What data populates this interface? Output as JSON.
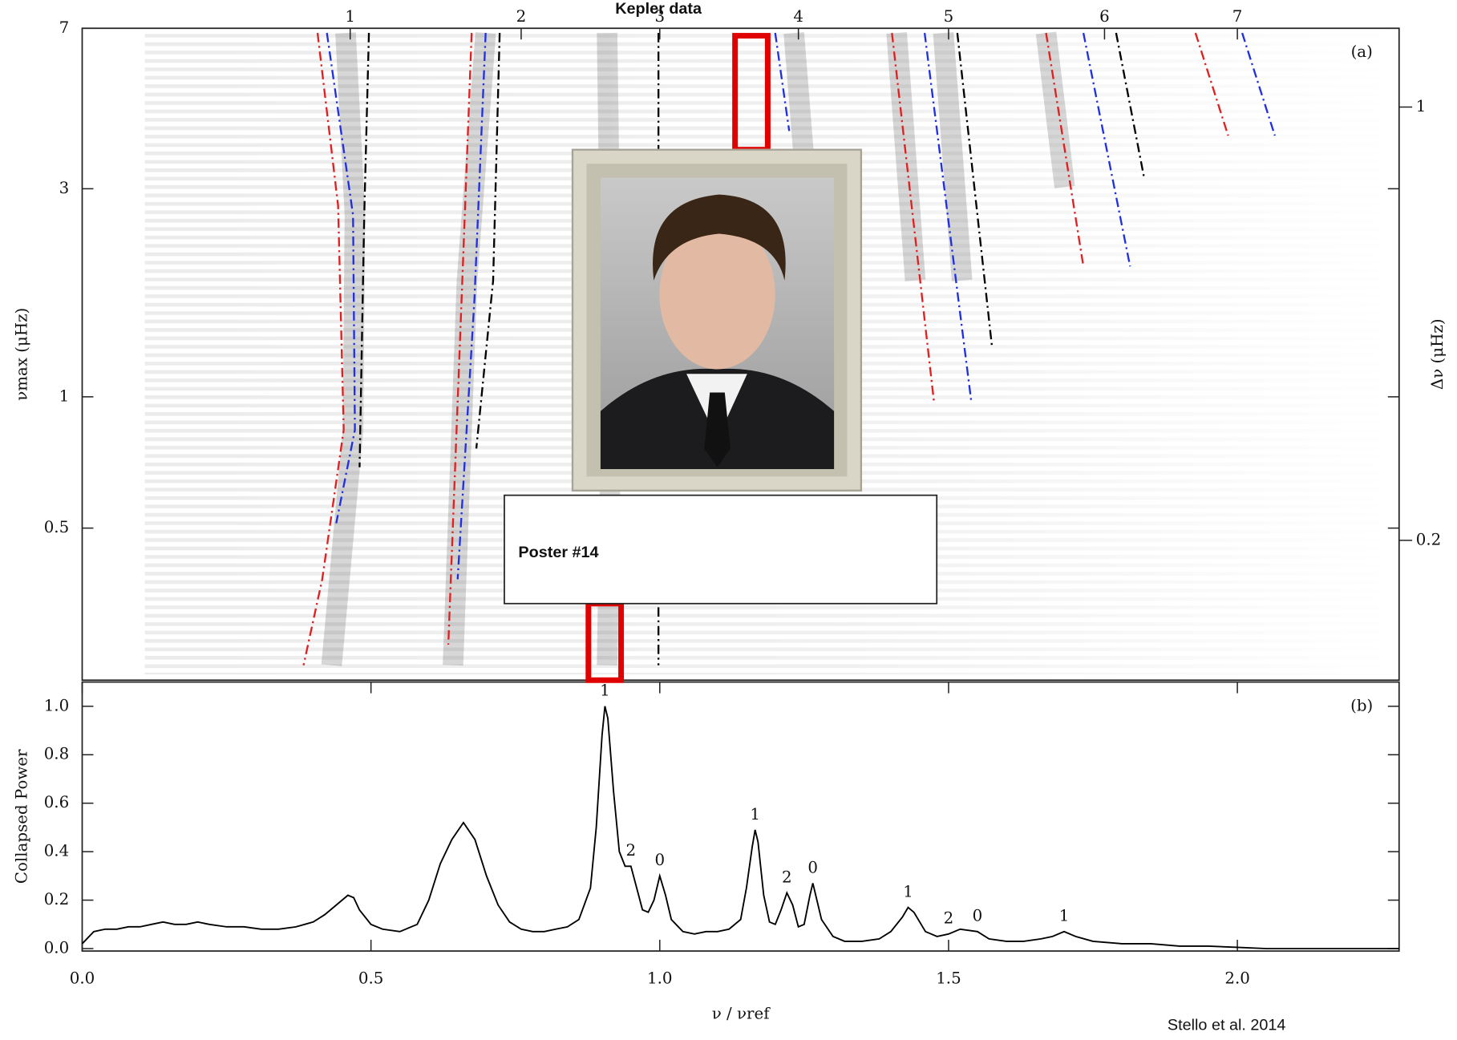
{
  "title": "Kepler data",
  "poster": "Poster #14",
  "citation": "Stello et al. 2014",
  "chart_data": [
    {
      "type": "echelle",
      "panel_label": "(a)",
      "ylabel": "νmax (μHz)",
      "y2label": "Δν (μHz)",
      "log_y": true,
      "xlim": [
        0,
        2.28
      ],
      "ylim": [
        0.224,
        7
      ],
      "yticks": [
        7,
        3,
        1,
        0.5
      ],
      "y2lim": [
        0.119,
        1.34
      ],
      "y2ticks": [
        1,
        0.2
      ],
      "top_ticks": [
        {
          "value": 0.464,
          "label": "1"
        },
        {
          "value": 0.76,
          "label": "2"
        },
        {
          "value": 1.0,
          "label": "3"
        },
        {
          "value": 1.24,
          "label": "4"
        },
        {
          "value": 1.5,
          "label": "5"
        },
        {
          "value": 1.77,
          "label": "6"
        },
        {
          "value": 2.0,
          "label": "7"
        }
      ]
    },
    {
      "type": "line",
      "panel_label": "(b)",
      "xlabel": "ν / νref",
      "ylabel": "Collapsed Power",
      "color": "#000000",
      "xlim": [
        0,
        2.28
      ],
      "ylim": [
        -0.01,
        1.1
      ],
      "xticks": [
        {
          "value": 0,
          "label": "0.0"
        },
        0.5,
        {
          "value": 1,
          "label": "1.0"
        },
        1.5,
        {
          "value": 2,
          "label": "2.0"
        }
      ],
      "yticks": [
        {
          "value": 0,
          "label": "0.0"
        },
        0.2,
        0.4,
        0.6,
        0.8,
        {
          "value": 1,
          "label": "1.0"
        }
      ],
      "x": [
        0.0,
        0.02,
        0.04,
        0.06,
        0.08,
        0.1,
        0.12,
        0.14,
        0.16,
        0.18,
        0.2,
        0.22,
        0.25,
        0.28,
        0.31,
        0.34,
        0.37,
        0.4,
        0.42,
        0.44,
        0.46,
        0.47,
        0.48,
        0.5,
        0.52,
        0.55,
        0.58,
        0.6,
        0.62,
        0.64,
        0.66,
        0.68,
        0.7,
        0.72,
        0.74,
        0.76,
        0.78,
        0.8,
        0.82,
        0.84,
        0.86,
        0.88,
        0.89,
        0.9,
        0.905,
        0.91,
        0.92,
        0.93,
        0.94,
        0.95,
        0.96,
        0.97,
        0.98,
        0.99,
        1.0,
        1.01,
        1.02,
        1.04,
        1.06,
        1.08,
        1.1,
        1.12,
        1.14,
        1.15,
        1.16,
        1.165,
        1.17,
        1.18,
        1.19,
        1.2,
        1.21,
        1.22,
        1.23,
        1.24,
        1.25,
        1.26,
        1.265,
        1.27,
        1.28,
        1.3,
        1.32,
        1.35,
        1.38,
        1.4,
        1.42,
        1.43,
        1.44,
        1.46,
        1.48,
        1.5,
        1.52,
        1.55,
        1.57,
        1.6,
        1.63,
        1.66,
        1.68,
        1.7,
        1.72,
        1.75,
        1.8,
        1.85,
        1.9,
        1.95,
        2.0,
        2.05,
        2.1,
        2.15,
        2.2,
        2.25,
        2.28
      ],
      "values": [
        0.02,
        0.07,
        0.08,
        0.08,
        0.09,
        0.09,
        0.1,
        0.11,
        0.1,
        0.1,
        0.11,
        0.1,
        0.09,
        0.09,
        0.08,
        0.08,
        0.09,
        0.11,
        0.14,
        0.18,
        0.22,
        0.21,
        0.16,
        0.1,
        0.08,
        0.07,
        0.1,
        0.2,
        0.35,
        0.45,
        0.52,
        0.45,
        0.3,
        0.18,
        0.11,
        0.08,
        0.07,
        0.07,
        0.08,
        0.09,
        0.12,
        0.25,
        0.5,
        0.88,
        1.0,
        0.95,
        0.65,
        0.4,
        0.34,
        0.34,
        0.25,
        0.16,
        0.15,
        0.2,
        0.3,
        0.22,
        0.12,
        0.07,
        0.06,
        0.07,
        0.07,
        0.08,
        0.12,
        0.25,
        0.42,
        0.49,
        0.44,
        0.22,
        0.11,
        0.1,
        0.16,
        0.23,
        0.18,
        0.09,
        0.1,
        0.22,
        0.27,
        0.22,
        0.12,
        0.05,
        0.03,
        0.03,
        0.04,
        0.07,
        0.13,
        0.17,
        0.15,
        0.07,
        0.05,
        0.06,
        0.08,
        0.07,
        0.04,
        0.03,
        0.03,
        0.04,
        0.05,
        0.07,
        0.05,
        0.03,
        0.02,
        0.02,
        0.01,
        0.01,
        0.005,
        0,
        0,
        0,
        0,
        0,
        0
      ],
      "peak_labels": [
        "1",
        "2",
        "0",
        "1",
        "2",
        "0",
        "1",
        "2",
        "0",
        "1"
      ]
    }
  ]
}
